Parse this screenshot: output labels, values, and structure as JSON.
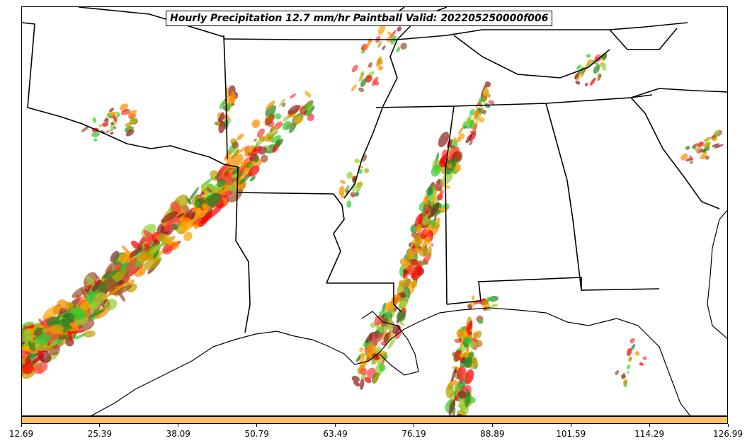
{
  "title": "Hourly Precipitation 12.7 mm/hr Paintball Valid: 202205250000f006",
  "colorbar": {
    "color": "#FFC060",
    "ticks": [
      "12.69",
      "25.39",
      "38.09",
      "50.79",
      "63.49",
      "76.19",
      "88.89",
      "101.59",
      "114.29",
      "126.99"
    ]
  },
  "member_colors": [
    "#FF0000",
    "#FF8C00",
    "#228B22",
    "#32CD32",
    "#9ACD32",
    "#A0522D",
    "#8B2323",
    "#B8A000",
    "#FF4040",
    "#FFA500"
  ],
  "basemap": {
    "coastlines": true,
    "state_borders": true
  }
}
